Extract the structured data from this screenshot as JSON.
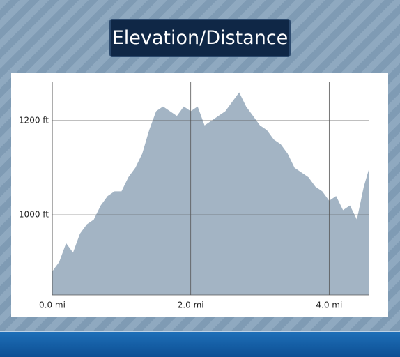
{
  "chart_data": {
    "type": "area",
    "title": "Elevation/Distance",
    "x": [
      0,
      0.1,
      0.2,
      0.3,
      0.4,
      0.5,
      0.6,
      0.7,
      0.8,
      0.9,
      1.0,
      1.1,
      1.2,
      1.3,
      1.4,
      1.5,
      1.6,
      1.7,
      1.8,
      1.9,
      2.0,
      2.1,
      2.2,
      2.3,
      2.4,
      2.5,
      2.6,
      2.7,
      2.8,
      2.9,
      3.0,
      3.1,
      3.2,
      3.3,
      3.4,
      3.5,
      3.6,
      3.7,
      3.8,
      3.9,
      4.0,
      4.1,
      4.2,
      4.3,
      4.4,
      4.5,
      4.58
    ],
    "values": [
      880,
      900,
      940,
      920,
      960,
      980,
      990,
      1020,
      1040,
      1050,
      1050,
      1080,
      1100,
      1130,
      1180,
      1220,
      1230,
      1220,
      1210,
      1230,
      1220,
      1230,
      1190,
      1200,
      1210,
      1220,
      1240,
      1260,
      1230,
      1210,
      1190,
      1180,
      1160,
      1150,
      1130,
      1100,
      1090,
      1080,
      1060,
      1050,
      1030,
      1040,
      1010,
      1020,
      990,
      1060,
      1100
    ],
    "color": "#a3b4c4",
    "xlim": [
      0,
      4.58
    ],
    "xticks": [
      {
        "value": 0,
        "label": "0.0 mi"
      },
      {
        "value": 2,
        "label": "2.0 mi"
      },
      {
        "value": 4,
        "label": "4.0 mi"
      }
    ],
    "ylim": [
      830,
      1283
    ],
    "yticks": [
      {
        "value": 1000,
        "label": "1000 ft"
      },
      {
        "value": 1200,
        "label": "1200 ft"
      }
    ],
    "grid": true
  }
}
